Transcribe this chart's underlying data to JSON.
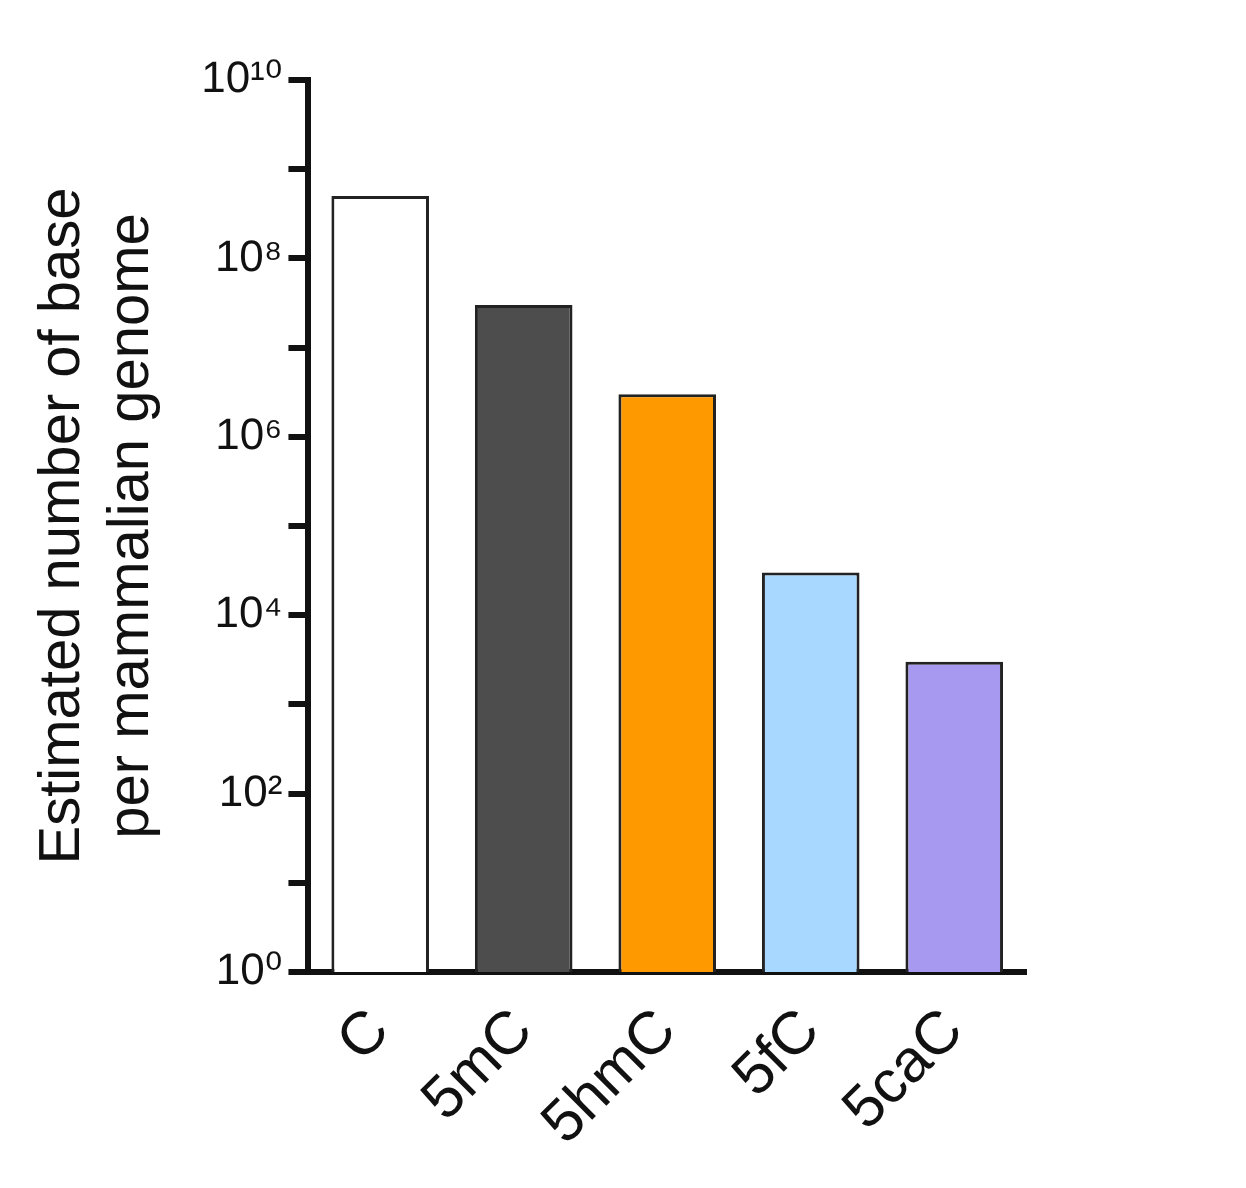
{
  "chart_data": {
    "type": "bar",
    "ylabel": "Estimated number of base\nper mammalian genome",
    "categories": [
      "C",
      "5mC",
      "5hmC",
      "5fC",
      "5caC"
    ],
    "values": [
      500000000,
      30000000,
      3000000,
      30000,
      3000
    ],
    "colors": [
      "#ffffff",
      "#4d4d4d",
      "#ff9900",
      "#a8d8ff",
      "#a899f0"
    ],
    "log": "y",
    "ylim": [
      1,
      10000000000
    ],
    "yticks": [
      {
        "value": 1,
        "label": "10⁰"
      },
      {
        "value": 10,
        "label": null
      },
      {
        "value": 100,
        "label": "10²"
      },
      {
        "value": 1000,
        "label": null
      },
      {
        "value": 10000,
        "label": "10⁴"
      },
      {
        "value": 100000,
        "label": null
      },
      {
        "value": 1000000,
        "label": "10⁶"
      },
      {
        "value": 10000000,
        "label": null
      },
      {
        "value": 100000000,
        "label": "10⁸"
      },
      {
        "value": 1000000000,
        "label": null
      },
      {
        "value": 10000000000,
        "label": "10¹⁰"
      }
    ],
    "grid": false,
    "legend": false
  }
}
